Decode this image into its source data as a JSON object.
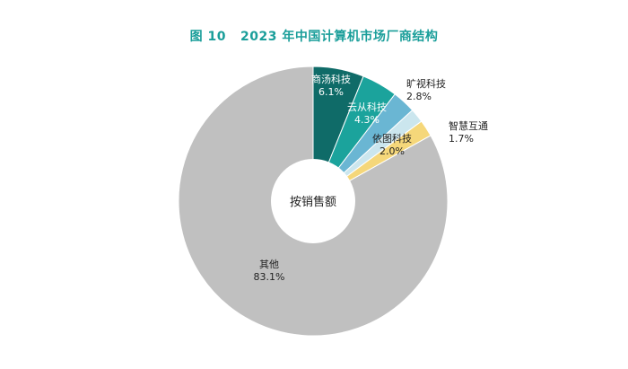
{
  "chart_data": {
    "type": "pie",
    "variant": "donut",
    "title": "图 10   2023 年中国计算机市场厂商结构",
    "center_label": "按销售额",
    "unit": "%",
    "slices": [
      {
        "name": "商汤科技",
        "value": 6.1,
        "label": "6.1%",
        "color": "#0f6b68"
      },
      {
        "name": "云从科技",
        "value": 4.3,
        "label": "4.3%",
        "color": "#1ba39c"
      },
      {
        "name": "旷视科技",
        "value": 2.8,
        "label": "2.8%",
        "color": "#6ab6d3"
      },
      {
        "name": "智慧互通",
        "value": 1.7,
        "label": "1.7%",
        "color": "#cbe6ee"
      },
      {
        "name": "依图科技",
        "value": 2.0,
        "label": "2.0%",
        "color": "#f5d77a"
      },
      {
        "name": "其他",
        "value": 83.1,
        "label": "83.1%",
        "color": "#c0c0c0"
      }
    ]
  }
}
